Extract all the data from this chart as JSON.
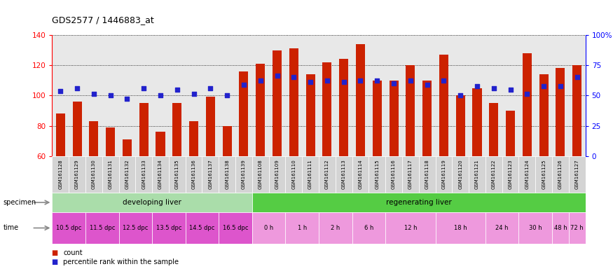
{
  "title": "GDS2577 / 1446883_at",
  "samples": [
    "GSM161128",
    "GSM161129",
    "GSM161130",
    "GSM161131",
    "GSM161132",
    "GSM161133",
    "GSM161134",
    "GSM161135",
    "GSM161136",
    "GSM161137",
    "GSM161138",
    "GSM161139",
    "GSM161108",
    "GSM161109",
    "GSM161110",
    "GSM161111",
    "GSM161112",
    "GSM161113",
    "GSM161114",
    "GSM161115",
    "GSM161116",
    "GSM161117",
    "GSM161118",
    "GSM161119",
    "GSM161120",
    "GSM161121",
    "GSM161122",
    "GSM161123",
    "GSM161124",
    "GSM161125",
    "GSM161126",
    "GSM161127"
  ],
  "bar_values": [
    88,
    96,
    83,
    79,
    71,
    95,
    76,
    95,
    83,
    99,
    80,
    116,
    121,
    130,
    131,
    114,
    122,
    124,
    134,
    110,
    110,
    120,
    110,
    127,
    100,
    105,
    95,
    90,
    128,
    114,
    118,
    120
  ],
  "dot_values": [
    103,
    105,
    101,
    100,
    98,
    105,
    100,
    104,
    101,
    105,
    100,
    107,
    110,
    113,
    112,
    109,
    110,
    109,
    110,
    110,
    108,
    110,
    107,
    110,
    100,
    106,
    105,
    104,
    101,
    106,
    106,
    112
  ],
  "ylim": [
    60,
    140
  ],
  "yticks": [
    60,
    80,
    100,
    120,
    140
  ],
  "right_ytick_vals": [
    0,
    25,
    50,
    75,
    100
  ],
  "right_ytick_labels": [
    "0",
    "25",
    "50",
    "75",
    "100%"
  ],
  "bar_color": "#cc2200",
  "dot_color": "#2222cc",
  "bg_color": "#e8e8e8",
  "specimen_groups": [
    {
      "label": "developing liver",
      "start": 0,
      "end": 12,
      "color": "#aaddaa"
    },
    {
      "label": "regenerating liver",
      "start": 12,
      "end": 32,
      "color": "#55cc44"
    }
  ],
  "time_labels": [
    {
      "label": "10.5 dpc",
      "start": 0,
      "end": 2,
      "dpc": true
    },
    {
      "label": "11.5 dpc",
      "start": 2,
      "end": 4,
      "dpc": true
    },
    {
      "label": "12.5 dpc",
      "start": 4,
      "end": 6,
      "dpc": true
    },
    {
      "label": "13.5 dpc",
      "start": 6,
      "end": 8,
      "dpc": true
    },
    {
      "label": "14.5 dpc",
      "start": 8,
      "end": 10,
      "dpc": true
    },
    {
      "label": "16.5 dpc",
      "start": 10,
      "end": 12,
      "dpc": true
    },
    {
      "label": "0 h",
      "start": 12,
      "end": 14,
      "dpc": false
    },
    {
      "label": "1 h",
      "start": 14,
      "end": 16,
      "dpc": false
    },
    {
      "label": "2 h",
      "start": 16,
      "end": 18,
      "dpc": false
    },
    {
      "label": "6 h",
      "start": 18,
      "end": 20,
      "dpc": false
    },
    {
      "label": "12 h",
      "start": 20,
      "end": 23,
      "dpc": false
    },
    {
      "label": "18 h",
      "start": 23,
      "end": 26,
      "dpc": false
    },
    {
      "label": "24 h",
      "start": 26,
      "end": 28,
      "dpc": false
    },
    {
      "label": "30 h",
      "start": 28,
      "end": 30,
      "dpc": false
    },
    {
      "label": "48 h",
      "start": 30,
      "end": 31,
      "dpc": false
    },
    {
      "label": "72 h",
      "start": 31,
      "end": 32,
      "dpc": false
    }
  ],
  "time_dpc_color": "#dd55cc",
  "time_h_color": "#ee99dd",
  "legend_count_color": "#cc2200",
  "legend_pct_color": "#2222cc"
}
